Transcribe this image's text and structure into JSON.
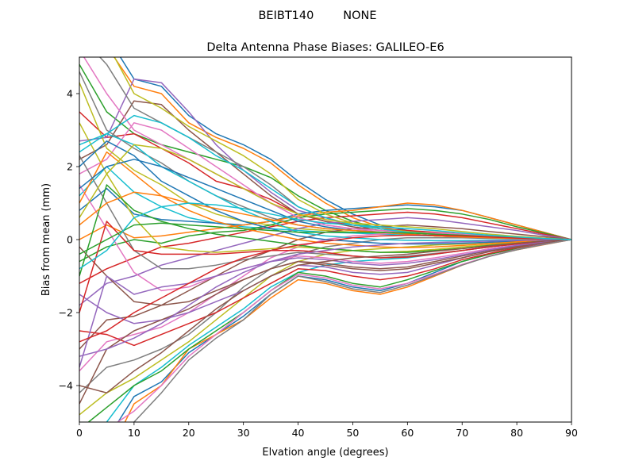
{
  "figure": {
    "suptitle": "BEIBT140        NONE"
  },
  "chart_data": {
    "type": "line",
    "title": "Delta Antenna Phase Biases: GALILEO-E6",
    "xlabel": "Elvation angle (degrees)",
    "ylabel": "Bias from mean (mm)",
    "xlim": [
      0,
      90
    ],
    "ylim": [
      -5,
      5
    ],
    "xticks": [
      0,
      10,
      20,
      30,
      40,
      50,
      60,
      70,
      80,
      90
    ],
    "yticks": [
      -4,
      -2,
      0,
      2,
      4
    ],
    "xtick_labels": [
      "0",
      "10",
      "20",
      "30",
      "40",
      "50",
      "60",
      "70",
      "80",
      "90"
    ],
    "ytick_labels": [
      "−4",
      "−2",
      "0",
      "2",
      "4"
    ],
    "grid": false,
    "legend": "none",
    "x": [
      0,
      5,
      10,
      15,
      20,
      25,
      30,
      35,
      40,
      45,
      50,
      55,
      60,
      65,
      70,
      75,
      80,
      85,
      90
    ],
    "colors": [
      "#1f77b4",
      "#ff7f0e",
      "#2ca02c",
      "#d62728",
      "#9467bd",
      "#8c564b",
      "#e377c2",
      "#7f7f7f",
      "#bcbd22",
      "#17becf"
    ],
    "series": [
      {
        "values": [
          5.8,
          5.6,
          4.4,
          4.2,
          3.4,
          2.9,
          2.6,
          2.2,
          1.6,
          1.1,
          0.7,
          0.4,
          0.25,
          0.15,
          0.1,
          0.07,
          0.04,
          0.02,
          0
        ]
      },
      {
        "values": [
          5.5,
          5.3,
          4.2,
          4.0,
          3.2,
          2.8,
          2.5,
          2.1,
          1.5,
          1.0,
          0.6,
          0.35,
          0.2,
          0.15,
          0.1,
          0.06,
          0.04,
          0.02,
          0
        ]
      },
      {
        "values": [
          4.8,
          3.5,
          2.9,
          2.6,
          2.4,
          2.2,
          2.0,
          1.7,
          1.2,
          0.8,
          0.5,
          0.3,
          0.2,
          0.15,
          0.1,
          0.06,
          0.04,
          0.02,
          0
        ]
      },
      {
        "values": [
          3.5,
          2.8,
          2.9,
          2.5,
          2.1,
          1.6,
          1.4,
          1.1,
          0.7,
          0.5,
          0.4,
          0.3,
          0.25,
          0.2,
          0.15,
          0.1,
          0.06,
          0.03,
          0
        ]
      },
      {
        "values": [
          2.7,
          2.8,
          4.4,
          4.3,
          3.5,
          2.6,
          1.9,
          1.3,
          0.8,
          0.6,
          0.4,
          0.3,
          0.2,
          0.15,
          0.1,
          0.06,
          0.04,
          0.02,
          0
        ]
      },
      {
        "values": [
          2.2,
          2.6,
          3.8,
          3.7,
          3.0,
          2.4,
          1.8,
          1.2,
          0.7,
          0.5,
          0.35,
          0.25,
          0.2,
          0.15,
          0.1,
          0.06,
          0.04,
          0.02,
          0
        ]
      },
      {
        "values": [
          1.8,
          2.2,
          3.2,
          3.0,
          2.5,
          2.0,
          1.5,
          1.0,
          0.6,
          0.4,
          0.3,
          0.2,
          0.15,
          0.1,
          0.08,
          0.05,
          0.03,
          0.02,
          0
        ]
      },
      {
        "values": [
          4.6,
          3.0,
          2.5,
          2.1,
          1.6,
          1.2,
          0.9,
          0.6,
          0.4,
          0.3,
          0.25,
          0.2,
          0.15,
          0.1,
          0.08,
          0.05,
          0.03,
          0.02,
          0
        ]
      },
      {
        "values": [
          4.3,
          2.5,
          1.9,
          1.5,
          1.0,
          0.7,
          0.5,
          0.4,
          0.3,
          0.25,
          0.2,
          0.18,
          0.15,
          0.1,
          0.08,
          0.05,
          0.03,
          0.02,
          0
        ]
      },
      {
        "values": [
          1.2,
          2.0,
          1.3,
          0.9,
          0.6,
          0.45,
          0.35,
          0.3,
          0.25,
          0.2,
          0.18,
          0.15,
          0.12,
          0.1,
          0.07,
          0.05,
          0.03,
          0.01,
          0
        ]
      },
      {
        "values": [
          0.8,
          1.4,
          0.7,
          0.55,
          0.5,
          0.45,
          0.4,
          0.5,
          0.7,
          0.8,
          0.85,
          0.9,
          0.95,
          0.9,
          0.8,
          0.6,
          0.4,
          0.2,
          0
        ]
      },
      {
        "values": [
          0.0,
          0.4,
          0.05,
          0.1,
          0.2,
          0.3,
          0.4,
          0.5,
          0.65,
          0.75,
          0.8,
          0.9,
          1.0,
          0.95,
          0.8,
          0.6,
          0.4,
          0.2,
          0
        ]
      },
      {
        "values": [
          -0.6,
          -0.2,
          0.0,
          -0.1,
          0.1,
          0.2,
          0.25,
          0.4,
          0.6,
          0.7,
          0.75,
          0.8,
          0.85,
          0.8,
          0.7,
          0.55,
          0.35,
          0.18,
          0
        ]
      },
      {
        "values": [
          -1.2,
          -0.8,
          -0.5,
          -0.2,
          -0.1,
          0.05,
          0.2,
          0.35,
          0.5,
          0.6,
          0.65,
          0.7,
          0.75,
          0.7,
          0.6,
          0.45,
          0.3,
          0.15,
          0
        ]
      },
      {
        "values": [
          -1.8,
          -1.2,
          -1.0,
          -0.7,
          -0.5,
          -0.3,
          -0.1,
          0.1,
          0.3,
          0.45,
          0.5,
          0.55,
          0.6,
          0.55,
          0.45,
          0.35,
          0.25,
          0.12,
          0
        ]
      },
      {
        "values": [
          -3.0,
          -2.2,
          -2.1,
          -1.8,
          -1.4,
          -1.0,
          -0.6,
          -0.3,
          0.0,
          0.2,
          0.3,
          0.35,
          0.4,
          0.35,
          0.3,
          0.22,
          0.15,
          0.08,
          0
        ]
      },
      {
        "values": [
          -3.6,
          -2.8,
          -2.6,
          -2.4,
          -2.0,
          -1.5,
          -1.0,
          -0.5,
          -0.2,
          0.0,
          0.1,
          0.15,
          0.2,
          0.18,
          0.15,
          0.1,
          0.06,
          0.03,
          0
        ]
      },
      {
        "values": [
          -4.2,
          -3.5,
          -3.3,
          -3.0,
          -2.6,
          -2.0,
          -1.3,
          -0.8,
          -0.4,
          -0.2,
          -0.1,
          0.0,
          0.05,
          0.05,
          0.05,
          0.03,
          0.02,
          0.01,
          0
        ]
      },
      {
        "values": [
          -4.8,
          -4.2,
          -3.8,
          -3.3,
          -2.8,
          -2.2,
          -1.6,
          -1.0,
          -0.6,
          -0.4,
          -0.3,
          -0.25,
          -0.2,
          -0.15,
          -0.12,
          -0.08,
          -0.05,
          -0.02,
          0
        ]
      },
      {
        "values": [
          -5.5,
          -5.0,
          -4.0,
          -3.5,
          -2.9,
          -2.4,
          -1.9,
          -1.3,
          -0.9,
          -0.7,
          -0.6,
          -0.55,
          -0.5,
          -0.4,
          -0.3,
          -0.2,
          -0.12,
          -0.06,
          0
        ]
      },
      {
        "values": [
          -6.2,
          -5.5,
          -4.3,
          -3.9,
          -3.1,
          -2.6,
          -2.1,
          -1.5,
          -1.0,
          -1.1,
          -1.3,
          -1.4,
          -1.2,
          -0.9,
          -0.6,
          -0.4,
          -0.25,
          -0.12,
          0
        ]
      },
      {
        "values": [
          -6.8,
          -6.0,
          -4.5,
          -4.0,
          -3.0,
          -2.6,
          -2.2,
          -1.6,
          -1.1,
          -1.2,
          -1.4,
          -1.5,
          -1.3,
          -1.0,
          -0.7,
          -0.45,
          -0.28,
          -0.14,
          0
        ]
      },
      {
        "values": [
          -5.2,
          -4.6,
          -4.0,
          -3.6,
          -3.0,
          -2.5,
          -2.0,
          -1.4,
          -0.9,
          -1.0,
          -1.2,
          -1.3,
          -1.1,
          -0.85,
          -0.6,
          -0.4,
          -0.25,
          -0.12,
          0
        ]
      },
      {
        "values": [
          -2.5,
          -2.6,
          -2.9,
          -2.6,
          -2.3,
          -2.0,
          -1.6,
          -1.2,
          -0.8,
          -0.85,
          -1.0,
          -1.1,
          -1.0,
          -0.8,
          -0.55,
          -0.38,
          -0.22,
          -0.1,
          0
        ]
      },
      {
        "values": [
          -1.5,
          -2.0,
          -2.3,
          -2.2,
          -2.0,
          -1.7,
          -1.4,
          -1.0,
          -0.7,
          -0.75,
          -0.9,
          -0.95,
          -0.9,
          -0.7,
          -0.5,
          -0.33,
          -0.2,
          -0.1,
          0
        ]
      },
      {
        "values": [
          -0.2,
          -1.0,
          -1.7,
          -1.8,
          -1.7,
          -1.4,
          -1.1,
          -0.8,
          -0.6,
          -0.65,
          -0.75,
          -0.8,
          -0.75,
          -0.6,
          -0.45,
          -0.3,
          -0.18,
          -0.08,
          0
        ]
      },
      {
        "values": [
          1.5,
          0.3,
          -0.9,
          -1.4,
          -1.3,
          -1.0,
          -0.8,
          -0.6,
          -0.45,
          -0.5,
          -0.6,
          -0.65,
          -0.6,
          -0.5,
          -0.38,
          -0.25,
          -0.15,
          -0.07,
          0
        ]
      },
      {
        "values": [
          2.3,
          1.0,
          -0.3,
          -0.8,
          -0.8,
          -0.7,
          -0.55,
          -0.45,
          -0.35,
          -0.4,
          -0.45,
          -0.5,
          -0.45,
          -0.38,
          -0.3,
          -0.2,
          -0.12,
          -0.05,
          0
        ]
      },
      {
        "values": [
          3.2,
          1.8,
          0.6,
          -0.2,
          -0.3,
          -0.35,
          -0.3,
          -0.25,
          -0.2,
          -0.25,
          -0.3,
          -0.35,
          -0.32,
          -0.27,
          -0.2,
          -0.14,
          -0.08,
          -0.04,
          0
        ]
      },
      {
        "values": [
          2.6,
          2.9,
          2.6,
          2.0,
          1.6,
          1.2,
          0.8,
          0.5,
          0.2,
          0.1,
          0.05,
          0.0,
          -0.02,
          -0.03,
          -0.03,
          -0.02,
          -0.01,
          0.0,
          0
        ]
      },
      {
        "values": [
          2.0,
          2.7,
          2.3,
          1.6,
          1.2,
          0.8,
          0.5,
          0.3,
          0.1,
          0.0,
          -0.05,
          -0.1,
          -0.12,
          -0.12,
          -0.1,
          -0.07,
          -0.04,
          -0.02,
          0
        ]
      },
      {
        "values": [
          1.0,
          2.4,
          1.8,
          1.2,
          0.8,
          0.5,
          0.3,
          0.15,
          0.0,
          -0.1,
          -0.15,
          -0.2,
          -0.22,
          -0.2,
          -0.16,
          -0.11,
          -0.06,
          -0.03,
          0
        ]
      },
      {
        "values": [
          -1.0,
          1.5,
          0.8,
          0.5,
          0.3,
          0.15,
          0.05,
          -0.05,
          -0.15,
          -0.25,
          -0.3,
          -0.35,
          -0.35,
          -0.3,
          -0.24,
          -0.16,
          -0.1,
          -0.04,
          0
        ]
      },
      {
        "values": [
          -2.0,
          0.5,
          -0.3,
          -0.4,
          -0.4,
          -0.4,
          -0.35,
          -0.3,
          -0.3,
          -0.35,
          -0.45,
          -0.5,
          -0.48,
          -0.4,
          -0.3,
          -0.2,
          -0.12,
          -0.05,
          0
        ]
      },
      {
        "values": [
          -3.5,
          -1.0,
          -1.5,
          -1.3,
          -1.2,
          -1.0,
          -0.8,
          -0.6,
          -0.5,
          -0.55,
          -0.65,
          -0.7,
          -0.65,
          -0.55,
          -0.42,
          -0.28,
          -0.16,
          -0.07,
          0
        ]
      },
      {
        "values": [
          -4.5,
          -3.0,
          -2.5,
          -2.2,
          -1.9,
          -1.5,
          -1.1,
          -0.8,
          -0.6,
          -0.7,
          -0.8,
          -0.85,
          -0.8,
          -0.65,
          -0.5,
          -0.33,
          -0.2,
          -0.09,
          0
        ]
      },
      {
        "values": [
          5.2,
          4.0,
          3.0,
          2.6,
          2.2,
          1.8,
          1.4,
          1.0,
          0.6,
          0.4,
          0.3,
          0.25,
          0.2,
          0.15,
          0.1,
          0.06,
          0.04,
          0.02,
          0
        ]
      },
      {
        "values": [
          5.6,
          4.8,
          3.6,
          3.2,
          2.8,
          2.4,
          2.0,
          1.5,
          0.9,
          0.6,
          0.4,
          0.3,
          0.22,
          0.15,
          0.1,
          0.06,
          0.04,
          0.02,
          0
        ]
      },
      {
        "values": [
          6.0,
          5.4,
          4.0,
          3.6,
          3.1,
          2.7,
          2.3,
          1.8,
          1.1,
          0.7,
          0.45,
          0.3,
          0.22,
          0.15,
          0.1,
          0.06,
          0.04,
          0.02,
          0
        ]
      },
      {
        "values": [
          2.4,
          2.9,
          3.4,
          3.2,
          2.8,
          2.3,
          1.9,
          1.4,
          0.9,
          0.6,
          0.4,
          0.3,
          0.2,
          0.14,
          0.1,
          0.06,
          0.04,
          0.02,
          0
        ]
      },
      {
        "values": [
          1.4,
          2.0,
          2.2,
          2.0,
          1.7,
          1.4,
          1.1,
          0.8,
          0.5,
          0.35,
          0.25,
          0.2,
          0.15,
          0.1,
          0.07,
          0.05,
          0.03,
          0.01,
          0
        ]
      },
      {
        "values": [
          0.4,
          1.0,
          1.3,
          1.2,
          1.0,
          0.85,
          0.7,
          0.55,
          0.4,
          0.3,
          0.25,
          0.2,
          0.15,
          0.1,
          0.07,
          0.05,
          0.03,
          0.01,
          0
        ]
      },
      {
        "values": [
          -0.4,
          0.0,
          0.4,
          0.45,
          0.4,
          0.35,
          0.3,
          0.25,
          0.2,
          0.2,
          0.2,
          0.2,
          0.18,
          0.15,
          0.12,
          0.08,
          0.05,
          0.02,
          0
        ]
      },
      {
        "values": [
          -2.8,
          -2.5,
          -2.0,
          -1.6,
          -1.2,
          -0.8,
          -0.5,
          -0.3,
          -0.15,
          -0.05,
          0.05,
          0.1,
          0.12,
          0.12,
          0.1,
          0.07,
          0.04,
          0.02,
          0
        ]
      },
      {
        "values": [
          -3.2,
          -3.0,
          -2.7,
          -2.3,
          -1.8,
          -1.3,
          -0.9,
          -0.6,
          -0.4,
          -0.3,
          -0.2,
          -0.15,
          -0.1,
          -0.08,
          -0.06,
          -0.04,
          -0.02,
          -0.01,
          0
        ]
      },
      {
        "values": [
          -4.0,
          -4.2,
          -3.6,
          -3.1,
          -2.5,
          -1.9,
          -1.4,
          -1.0,
          -0.7,
          -0.6,
          -0.5,
          -0.45,
          -0.4,
          -0.32,
          -0.25,
          -0.17,
          -0.1,
          -0.04,
          0
        ]
      },
      {
        "values": [
          -5.8,
          -5.2,
          -4.7,
          -4.0,
          -3.2,
          -2.6,
          -2.0,
          -1.4,
          -0.95,
          -1.05,
          -1.25,
          -1.35,
          -1.2,
          -0.95,
          -0.68,
          -0.45,
          -0.27,
          -0.13,
          0
        ]
      },
      {
        "values": [
          -6.5,
          -5.8,
          -5.0,
          -4.2,
          -3.3,
          -2.7,
          -2.2,
          -1.5,
          -1.0,
          -1.15,
          -1.35,
          -1.45,
          -1.25,
          -0.98,
          -0.7,
          -0.46,
          -0.28,
          -0.13,
          0
        ]
      },
      {
        "values": [
          0.6,
          1.8,
          2.6,
          2.5,
          2.2,
          1.8,
          1.4,
          1.0,
          0.7,
          0.55,
          0.45,
          0.4,
          0.35,
          0.3,
          0.22,
          0.15,
          0.09,
          0.04,
          0
        ]
      },
      {
        "values": [
          -0.8,
          -0.3,
          0.6,
          0.9,
          1.0,
          0.95,
          0.85,
          0.7,
          0.55,
          0.45,
          0.4,
          0.35,
          0.3,
          0.25,
          0.18,
          0.12,
          0.07,
          0.03,
          0
        ]
      }
    ]
  }
}
